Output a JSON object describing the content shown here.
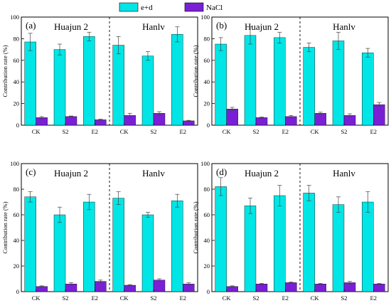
{
  "legend": {
    "position": "top",
    "items": [
      {
        "label": "e+d",
        "color": "#00e5e5"
      },
      {
        "label": "NaCl",
        "color": "#7a1fd6"
      }
    ]
  },
  "ylabel": "Contribution rate (%)",
  "chart_data": [
    {
      "type": "bar",
      "panel_label": "(a)",
      "groups": [
        "Huajun 2",
        "Hanlv"
      ],
      "categories": [
        "CK",
        "S2",
        "E2",
        "CK",
        "S2",
        "E2"
      ],
      "series": [
        {
          "name": "e+d",
          "values": [
            77,
            70,
            82,
            74,
            64,
            84
          ],
          "errors": [
            8,
            5,
            4,
            8,
            4,
            7
          ]
        },
        {
          "name": "NaCl",
          "values": [
            7,
            8,
            5,
            9,
            11,
            4
          ],
          "errors": [
            1,
            0.5,
            0.5,
            2,
            1.5,
            0.5
          ]
        }
      ],
      "ylabel": "Contribution rate (%)",
      "ylim": [
        0,
        100
      ],
      "yticks": [
        0,
        20,
        40,
        60,
        80,
        100
      ],
      "grid": false
    },
    {
      "type": "bar",
      "panel_label": "(b)",
      "groups": [
        "Huajun 2",
        "Hanlv"
      ],
      "categories": [
        "CK",
        "S2",
        "E2",
        "CK",
        "S2",
        "E2"
      ],
      "series": [
        {
          "name": "e+d",
          "values": [
            75,
            83,
            81,
            72,
            78,
            67
          ],
          "errors": [
            6,
            8,
            5,
            4,
            8,
            4
          ]
        },
        {
          "name": "NaCl",
          "values": [
            15,
            7,
            8,
            11,
            9,
            19
          ],
          "errors": [
            1.5,
            0.5,
            1,
            1,
            1.5,
            2
          ]
        }
      ],
      "ylabel": "Contribution rate (%)",
      "ylim": [
        0,
        100
      ],
      "yticks": [
        0,
        20,
        40,
        60,
        80,
        100
      ],
      "grid": false
    },
    {
      "type": "bar",
      "panel_label": "(c)",
      "groups": [
        "Huajun 2",
        "Hanlv"
      ],
      "categories": [
        "CK",
        "S2",
        "E2",
        "CK",
        "S2",
        "E2"
      ],
      "series": [
        {
          "name": "e+d",
          "values": [
            74,
            60,
            70,
            73,
            60,
            71
          ],
          "errors": [
            4,
            6,
            6,
            5,
            2,
            5
          ]
        },
        {
          "name": "NaCl",
          "values": [
            4,
            6,
            8,
            5,
            9,
            6
          ],
          "errors": [
            0.5,
            1,
            1,
            0.5,
            1,
            1
          ]
        }
      ],
      "ylabel": "Contribution rate (%)",
      "ylim": [
        0,
        100
      ],
      "yticks": [
        0,
        20,
        40,
        60,
        80,
        100
      ],
      "grid": false
    },
    {
      "type": "bar",
      "panel_label": "(d)",
      "groups": [
        "Huajun 2",
        "Hanlv"
      ],
      "categories": [
        "CK",
        "S2",
        "E2",
        "CK",
        "S2",
        "E2"
      ],
      "series": [
        {
          "name": "e+d",
          "values": [
            82,
            67,
            75,
            77,
            68,
            70
          ],
          "errors": [
            7,
            6,
            8,
            6,
            6,
            8
          ]
        },
        {
          "name": "NaCl",
          "values": [
            4,
            6,
            7,
            6,
            7,
            6
          ],
          "errors": [
            0.5,
            0.5,
            0.5,
            0.5,
            1,
            0.5
          ]
        }
      ],
      "ylabel": "Contribution rate (%)",
      "ylim": [
        0,
        100
      ],
      "yticks": [
        0,
        20,
        40,
        60,
        80,
        100
      ],
      "grid": false
    }
  ]
}
